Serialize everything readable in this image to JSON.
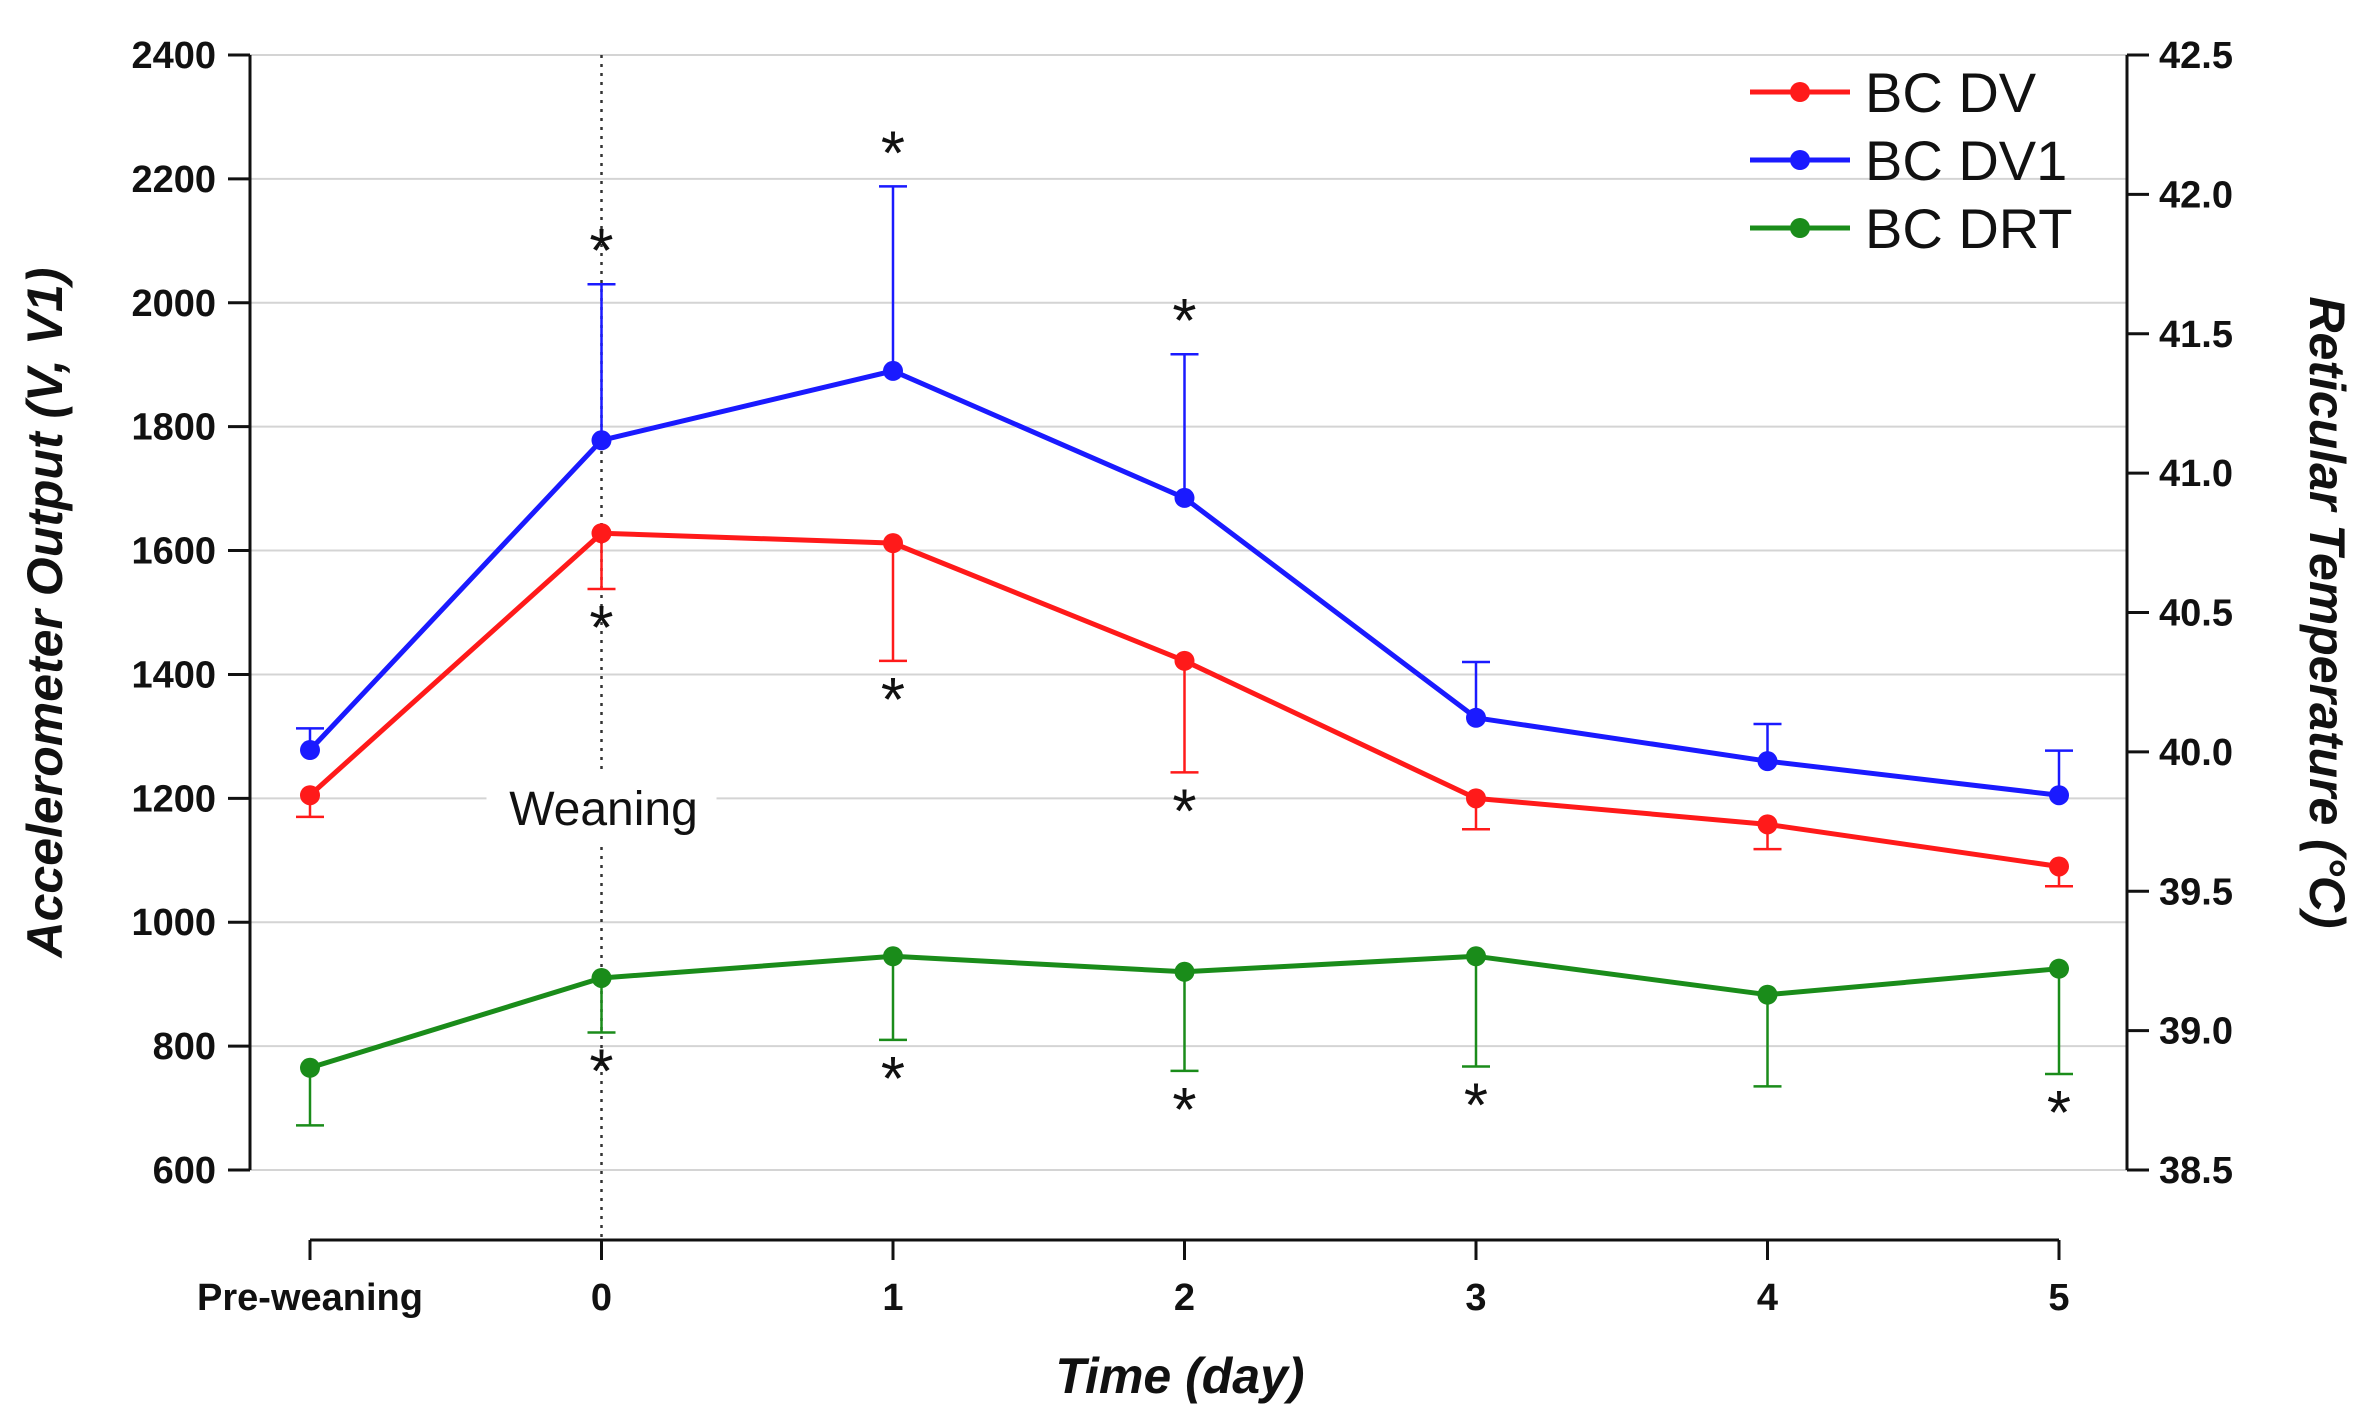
{
  "chart_data": {
    "type": "line",
    "title": "",
    "xlabel": "Time  (day)",
    "ylabel": "Accelerometer Output  (V, V1)",
    "y2label": "Reticular Temperature (°C)",
    "categories": [
      "Pre-weaning",
      "0",
      "1",
      "2",
      "3",
      "4",
      "5"
    ],
    "ylim": [
      600,
      2400
    ],
    "y2lim": [
      38.5,
      42.5
    ],
    "yticks": [
      "600",
      "800",
      "1000",
      "1200",
      "1400",
      "1600",
      "1800",
      "2000",
      "2200",
      "2400"
    ],
    "y2ticks": [
      "38.5",
      "39.0",
      "39.5",
      "40.0",
      "40.5",
      "41.0",
      "41.5",
      "42.0",
      "42.5"
    ],
    "grid": true,
    "legend_position": "top-right",
    "series": [
      {
        "name": "BC DV",
        "color": "#ff1a1a",
        "axis": "left",
        "values": [
          1205,
          1628,
          1612,
          1422,
          1200,
          1158,
          1090
        ],
        "error_up": [
          0,
          0,
          0,
          0,
          0,
          0,
          0
        ],
        "error_down": [
          35,
          90,
          190,
          180,
          50,
          40,
          32
        ],
        "stars": [
          "",
          "below",
          "below",
          "below",
          "",
          "",
          ""
        ]
      },
      {
        "name": "BC DV1",
        "color": "#1a1aff",
        "axis": "left",
        "values": [
          1278,
          1778,
          1890,
          1685,
          1330,
          1260,
          1205
        ],
        "error_up": [
          35,
          252,
          298,
          232,
          90,
          60,
          72
        ],
        "error_down": [
          0,
          0,
          0,
          0,
          0,
          0,
          0
        ],
        "stars": [
          "",
          "above",
          "above",
          "above",
          "",
          "",
          ""
        ]
      },
      {
        "name": "BC DRT",
        "color": "#1a8c1a",
        "axis": "left",
        "values": [
          765,
          910,
          945,
          920,
          945,
          883,
          925
        ],
        "error_up": [
          0,
          0,
          0,
          0,
          0,
          0,
          0
        ],
        "error_down": [
          93,
          88,
          135,
          160,
          178,
          148,
          170
        ],
        "stars": [
          "",
          "below",
          "below",
          "below",
          "below",
          "",
          "below"
        ]
      }
    ],
    "annotations": [
      {
        "text": "Weaning",
        "x_category": "0",
        "type": "vertical-dotted-line"
      }
    ],
    "star_symbol": "*"
  }
}
